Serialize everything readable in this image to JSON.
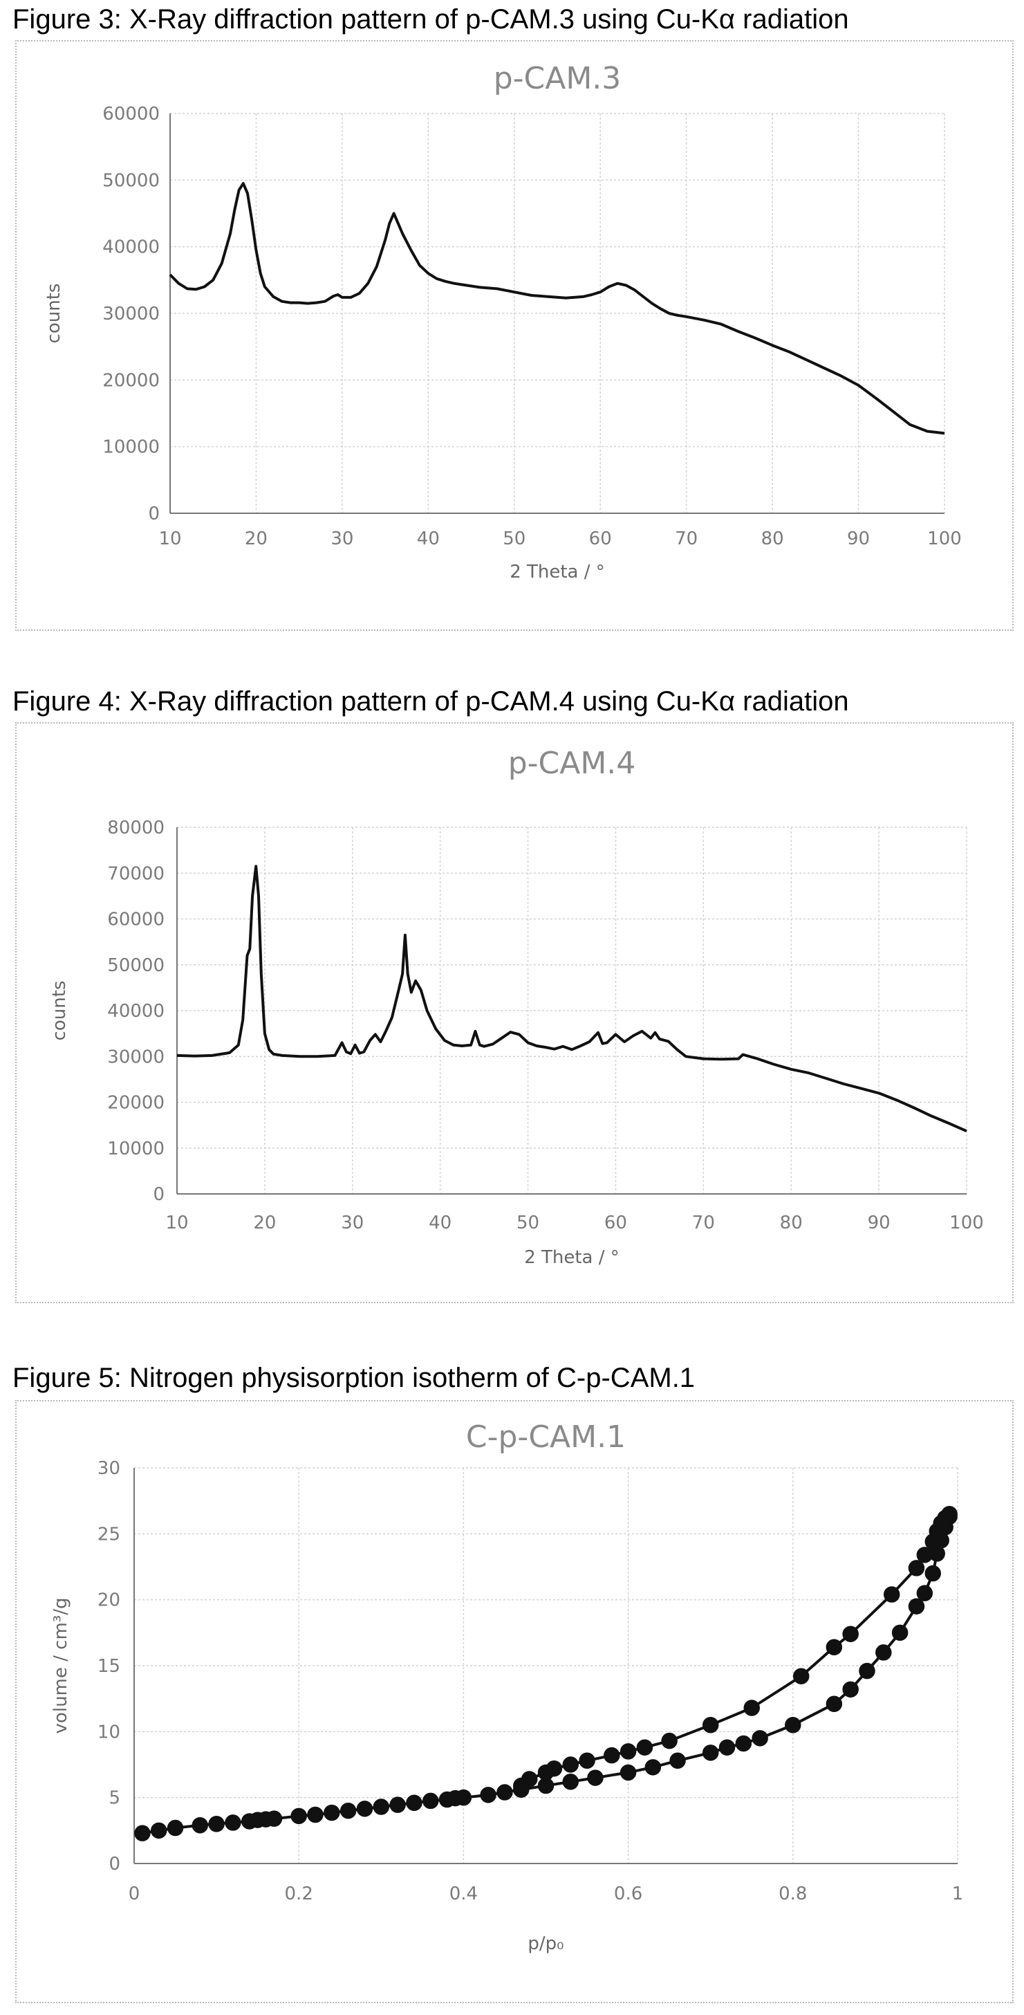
{
  "figures": [
    {
      "caption": "Figure 3: X-Ray diffraction pattern of p-CAM.3 using Cu-Kα radiation"
    },
    {
      "caption": "Figure 4: X-Ray diffraction pattern of p-CAM.4 using Cu-Kα radiation"
    },
    {
      "caption": "Figure 5: Nitrogen physisorption isotherm of C-p-CAM.1"
    }
  ],
  "chart_data": [
    {
      "type": "line",
      "title": "p-CAM.3",
      "xlabel": "2 Theta / °",
      "ylabel": "counts",
      "xlim": [
        10,
        100
      ],
      "ylim": [
        0,
        60000
      ],
      "xticks": [
        10,
        20,
        30,
        40,
        50,
        60,
        70,
        80,
        90,
        100
      ],
      "yticks": [
        0,
        10000,
        20000,
        30000,
        40000,
        50000,
        60000
      ],
      "grid": true,
      "legend": false,
      "series": [
        {
          "x": [
            10,
            11,
            12,
            13,
            14,
            15,
            16,
            17,
            17.5,
            18,
            18.5,
            19,
            19.5,
            20,
            20.5,
            21,
            22,
            23,
            24,
            25,
            26,
            27,
            28,
            29,
            29.5,
            30,
            31,
            32,
            33,
            34,
            35,
            35.5,
            36,
            36.5,
            37,
            38,
            39,
            40,
            41,
            42,
            43,
            44,
            45,
            46,
            48,
            50,
            52,
            54,
            56,
            58,
            59,
            60,
            61,
            62,
            63,
            64,
            65,
            66,
            67,
            68,
            69,
            70,
            72,
            74,
            76,
            78,
            80,
            82,
            84,
            86,
            88,
            90,
            92,
            94,
            96,
            98,
            100
          ],
          "y": [
            35800,
            34500,
            33700,
            33600,
            34000,
            35000,
            37500,
            42000,
            45500,
            48500,
            49500,
            48000,
            44000,
            39500,
            36000,
            34000,
            32500,
            31800,
            31600,
            31600,
            31500,
            31600,
            31800,
            32600,
            32800,
            32400,
            32400,
            33000,
            34500,
            37000,
            41000,
            43500,
            45000,
            43500,
            42000,
            39500,
            37200,
            36000,
            35200,
            34800,
            34500,
            34300,
            34100,
            33900,
            33700,
            33200,
            32700,
            32500,
            32300,
            32500,
            32800,
            33200,
            34000,
            34500,
            34200,
            33500,
            32500,
            31500,
            30700,
            30000,
            29700,
            29500,
            29000,
            28400,
            27300,
            26300,
            25200,
            24200,
            23000,
            21800,
            20600,
            19200,
            17300,
            15300,
            13300,
            12300,
            12000
          ]
        }
      ]
    },
    {
      "type": "line",
      "title": "p-CAM.4",
      "xlabel": "2 Theta / °",
      "ylabel": "counts",
      "xlim": [
        10,
        100
      ],
      "ylim": [
        0,
        80000
      ],
      "xticks": [
        10,
        20,
        30,
        40,
        50,
        60,
        70,
        80,
        90,
        100
      ],
      "yticks": [
        0,
        10000,
        20000,
        30000,
        40000,
        50000,
        60000,
        70000,
        80000
      ],
      "grid": true,
      "legend": false,
      "series": [
        {
          "x": [
            10,
            12,
            14,
            16,
            17,
            17.5,
            18,
            18.3,
            18.6,
            19,
            19.3,
            19.6,
            20,
            20.5,
            21,
            22,
            24,
            26,
            28,
            28.8,
            29.3,
            29.8,
            30.3,
            30.8,
            31.3,
            32,
            32.6,
            33.2,
            33.8,
            34.5,
            35.2,
            35.7,
            36,
            36.3,
            36.7,
            37.2,
            37.8,
            38.5,
            39.5,
            40.5,
            41.5,
            42.5,
            43.5,
            44,
            44.5,
            45,
            46,
            47,
            48,
            49,
            50,
            51,
            52,
            53,
            54,
            55,
            56,
            57,
            58,
            58.5,
            59,
            60,
            61,
            62,
            63,
            64,
            64.5,
            65,
            66,
            67,
            68,
            70,
            72,
            74,
            74.5,
            76,
            78,
            80,
            82,
            84,
            86,
            88,
            90,
            92,
            94,
            96,
            98,
            100
          ],
          "y": [
            30200,
            30100,
            30200,
            30800,
            32500,
            38000,
            52000,
            53500,
            65000,
            71500,
            65000,
            48000,
            35000,
            31500,
            30500,
            30200,
            30000,
            30000,
            30200,
            33000,
            31000,
            30600,
            32500,
            30700,
            31000,
            33500,
            34800,
            33200,
            35500,
            38500,
            44000,
            48000,
            56500,
            48000,
            44000,
            46500,
            44500,
            40000,
            36000,
            33500,
            32500,
            32300,
            32500,
            35500,
            32500,
            32200,
            32700,
            34000,
            35300,
            34800,
            33000,
            32300,
            32000,
            31600,
            32200,
            31500,
            32300,
            33200,
            35200,
            32800,
            33000,
            34800,
            33200,
            34500,
            35500,
            34000,
            35200,
            33800,
            33300,
            31500,
            30000,
            29500,
            29400,
            29500,
            30400,
            29600,
            28300,
            27200,
            26400,
            25200,
            24000,
            23000,
            22000,
            20500,
            18800,
            17000,
            15400,
            13700
          ]
        }
      ]
    },
    {
      "type": "scatter",
      "title": "C-p-CAM.1",
      "xlabel": "p/p₀",
      "ylabel": "volume / cm³/g",
      "xlim": [
        0,
        1
      ],
      "ylim": [
        0,
        30
      ],
      "xticks": [
        0,
        0.2,
        0.4,
        0.6,
        0.8,
        1
      ],
      "yticks": [
        0,
        5,
        10,
        15,
        20,
        25,
        30
      ],
      "grid": true,
      "legend": false,
      "series": [
        {
          "x": [
            0.01,
            0.03,
            0.05,
            0.08,
            0.1,
            0.12,
            0.14,
            0.15,
            0.16,
            0.17,
            0.2,
            0.22,
            0.24,
            0.26,
            0.28,
            0.3,
            0.32,
            0.34,
            0.36,
            0.38,
            0.39,
            0.4,
            0.43,
            0.45,
            0.47,
            0.5,
            0.53,
            0.56,
            0.6,
            0.63,
            0.66,
            0.7,
            0.72,
            0.74,
            0.76,
            0.8,
            0.85,
            0.87,
            0.89,
            0.91,
            0.93,
            0.95,
            0.96,
            0.97,
            0.975,
            0.98,
            0.985,
            0.99
          ],
          "y": [
            2.3,
            2.5,
            2.7,
            2.9,
            3.0,
            3.1,
            3.2,
            3.3,
            3.35,
            3.4,
            3.6,
            3.7,
            3.85,
            4.0,
            4.15,
            4.3,
            4.45,
            4.6,
            4.75,
            4.85,
            4.95,
            5.0,
            5.2,
            5.4,
            5.6,
            5.9,
            6.2,
            6.5,
            6.9,
            7.3,
            7.8,
            8.4,
            8.8,
            9.1,
            9.5,
            10.5,
            12.1,
            13.2,
            14.6,
            16.0,
            17.5,
            19.5,
            20.5,
            22.0,
            23.5,
            24.5,
            25.5,
            26.3
          ]
        },
        {
          "x": [
            0.99,
            0.985,
            0.98,
            0.975,
            0.97,
            0.96,
            0.95,
            0.92,
            0.87,
            0.85,
            0.81,
            0.75,
            0.7,
            0.65,
            0.62,
            0.6,
            0.58,
            0.55,
            0.53,
            0.51,
            0.5,
            0.48,
            0.47
          ],
          "y": [
            26.5,
            26.2,
            25.8,
            25.2,
            24.4,
            23.4,
            22.4,
            20.4,
            17.4,
            16.4,
            14.2,
            11.8,
            10.5,
            9.3,
            8.8,
            8.5,
            8.2,
            7.8,
            7.5,
            7.2,
            6.9,
            6.4,
            5.9
          ]
        }
      ]
    }
  ]
}
